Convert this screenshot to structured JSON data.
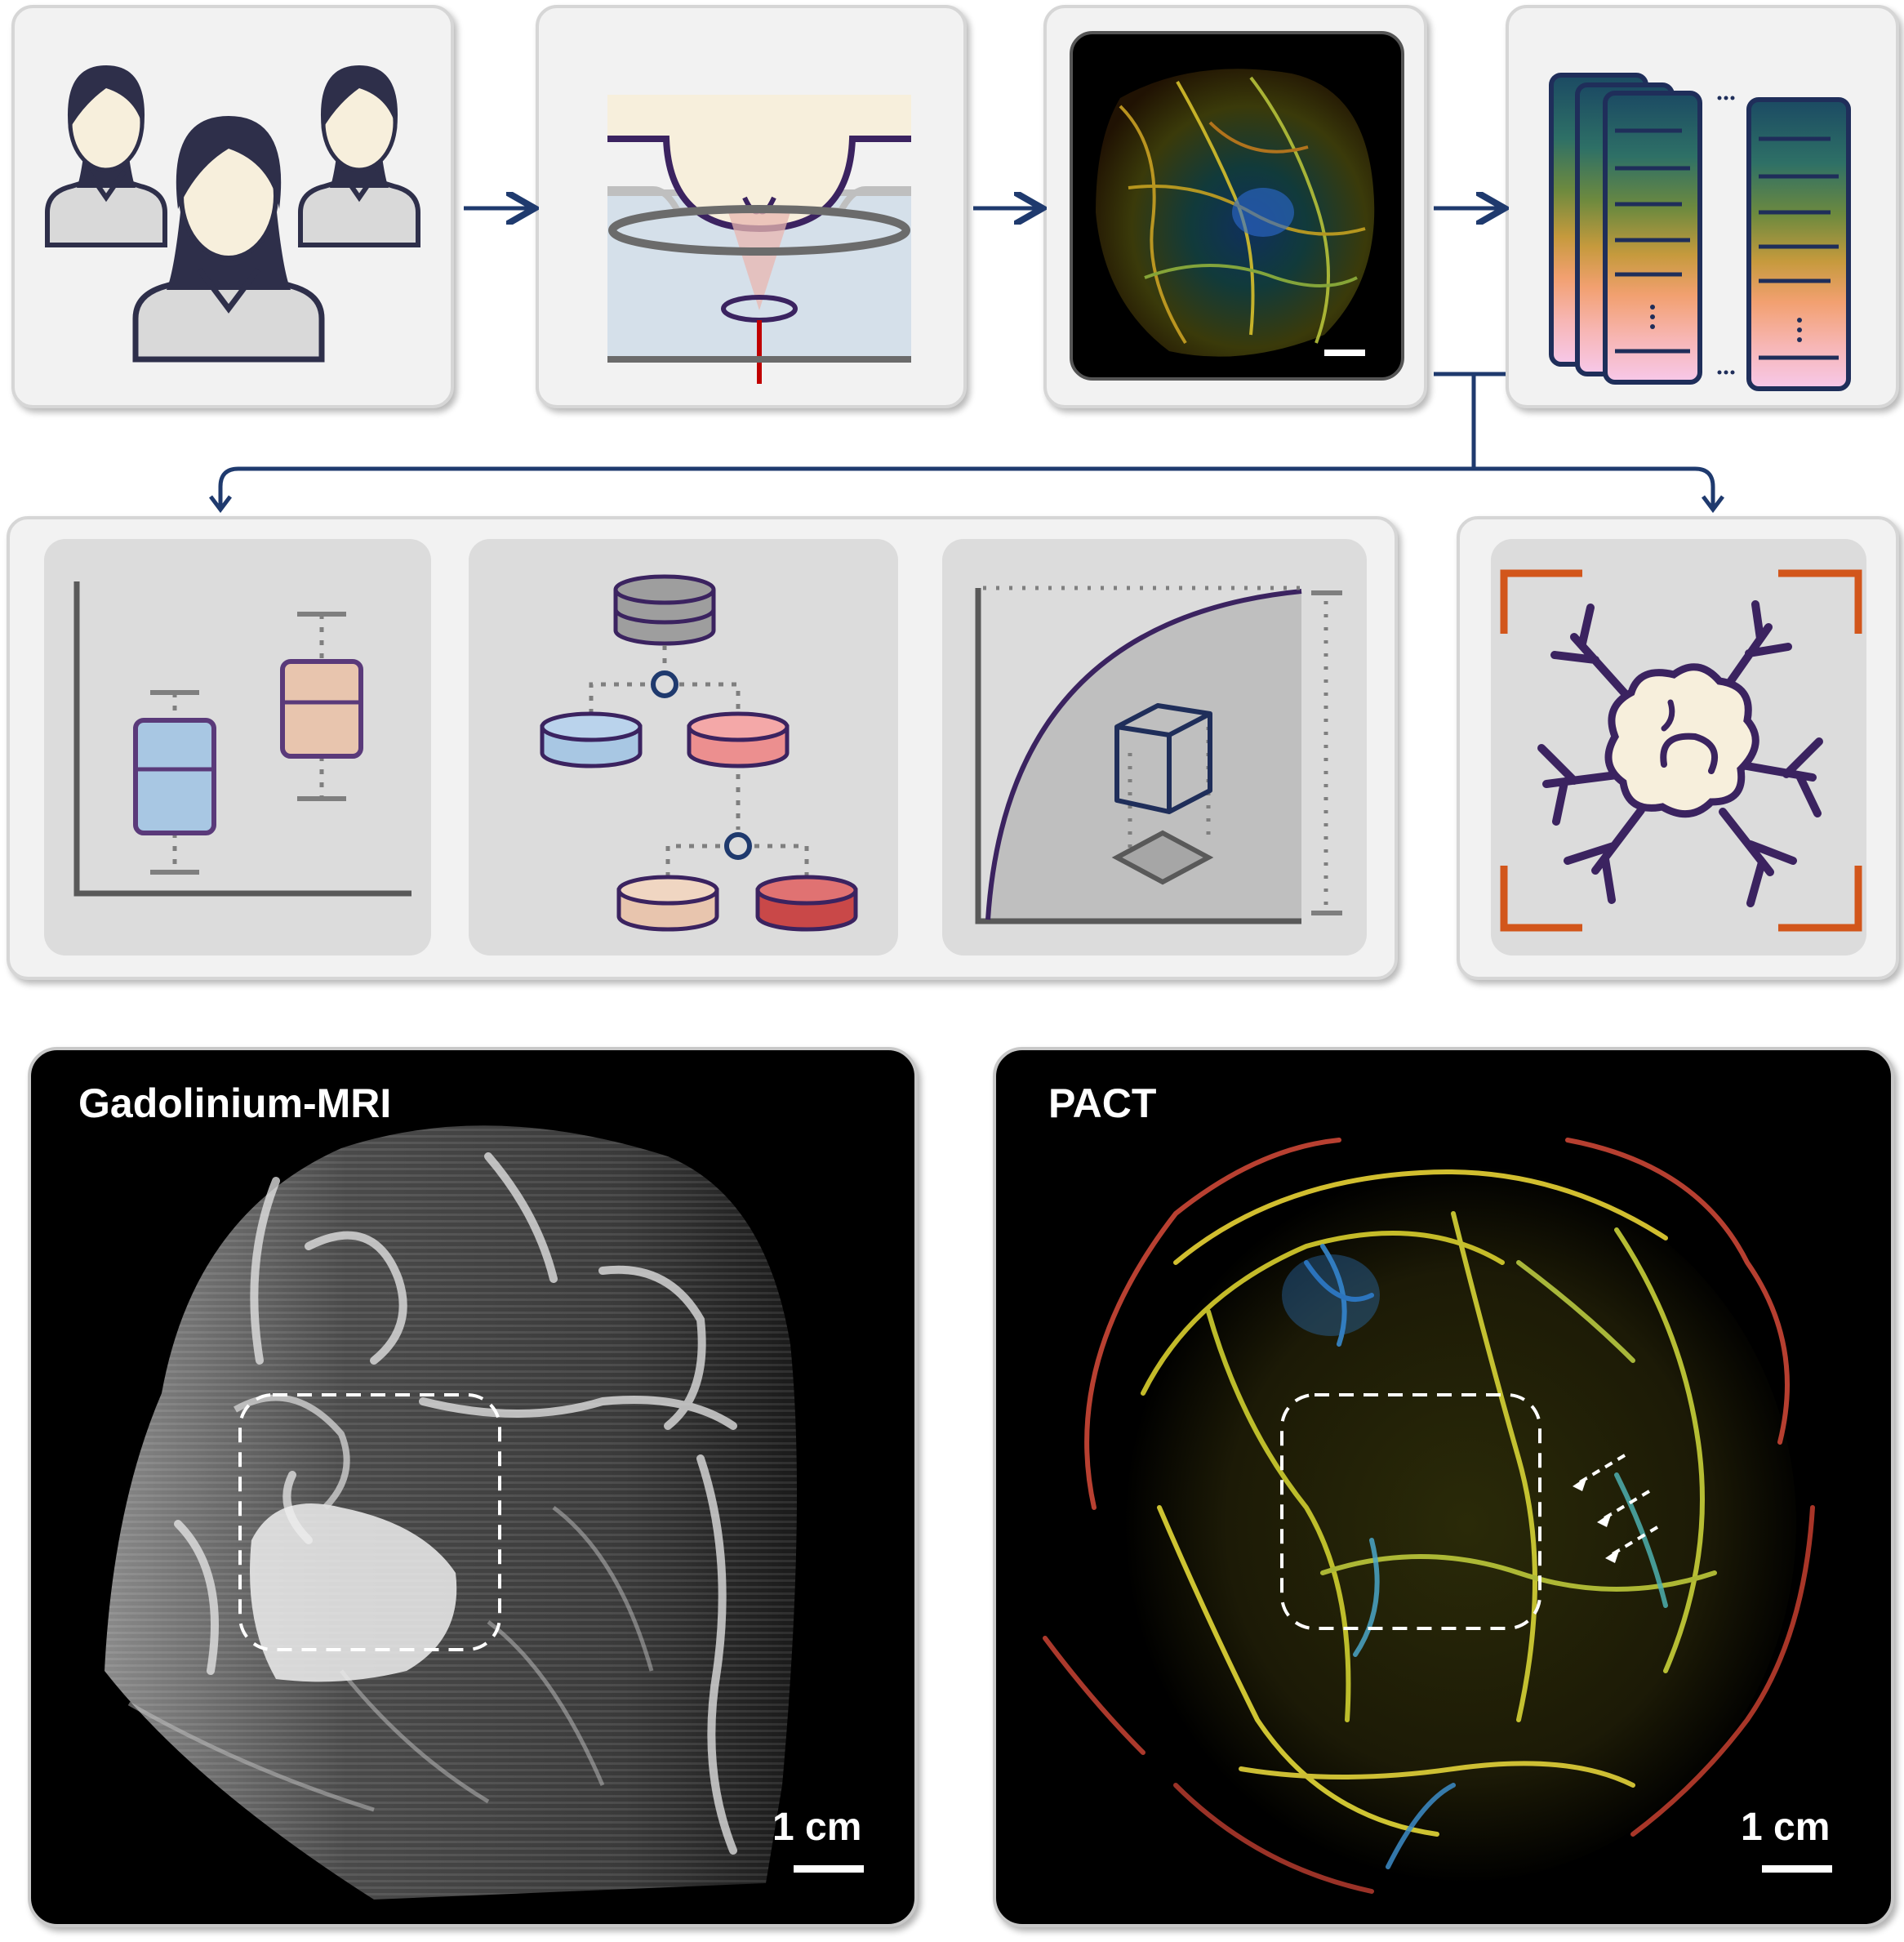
{
  "panels": {
    "mri": {
      "title": "Gadolinium-MRI",
      "scale_label": "1 cm"
    },
    "pact": {
      "title": "PACT",
      "scale_label": "1 cm"
    }
  },
  "colors": {
    "navy": "#1f3a6e",
    "outline": "#3b2360",
    "orange": "#d2561b",
    "laser": "#c00000"
  },
  "icons": [
    "patients-icon",
    "imaging-setup-icon",
    "vascular-image-thumbnail",
    "dataset-stack-icon",
    "boxplot-icon",
    "decision-tree-icon",
    "performance-curve-icon",
    "tumor-vasculature-icon"
  ]
}
